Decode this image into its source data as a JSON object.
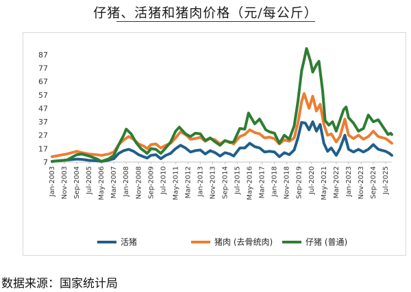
{
  "title": "仔猪、活猪和猪肉价格（元/每公斤）",
  "source": "数据来源：国家统计局",
  "chart_data": {
    "type": "line",
    "title": "仔猪、活猪和猪肉价格（元/每公斤）",
    "xlabel": "",
    "ylabel": "",
    "ylim": [
      7,
      92
    ],
    "yticks": [
      7,
      17,
      27,
      37,
      47,
      57,
      67,
      77,
      87
    ],
    "x_start": "Jan-2003",
    "x_end": "Dec-2025",
    "xtick_labels": [
      "Jan-2003",
      "Nov-2003",
      "Sep-2004",
      "Jul-2005",
      "May-2006",
      "Mar-2007",
      "Jan-2008",
      "Nov-2008",
      "Sep-2009",
      "Jul-2010",
      "May-2011",
      "Mar-2012",
      "Jan-2013",
      "Nov-2013",
      "Sep-2014",
      "Jul-2015",
      "May-2016",
      "Mar-2017",
      "Jan-2018",
      "Nov-2018",
      "Sep-2019",
      "Jul-2020",
      "May-2021",
      "Mar-2022",
      "Jan-2023",
      "Nov-2023",
      "Sep-2024",
      "Jul-2025"
    ],
    "grid": false,
    "legend_position": "bottom",
    "series": [
      {
        "name": "活猪",
        "color": "#1f5f8b",
        "points": [
          [
            "Jan-2003",
            7.5
          ],
          [
            "Jan-2004",
            8.5
          ],
          [
            "Sep-2004",
            9.2
          ],
          [
            "Jan-2005",
            9.0
          ],
          [
            "Jul-2005",
            8.3
          ],
          [
            "Jan-2006",
            8.0
          ],
          [
            "May-2006",
            7.4
          ],
          [
            "Nov-2006",
            8.5
          ],
          [
            "Mar-2007",
            9.5
          ],
          [
            "Jul-2007",
            13.5
          ],
          [
            "Nov-2007",
            15.5
          ],
          [
            "Mar-2008",
            16.5
          ],
          [
            "Jul-2008",
            15.0
          ],
          [
            "Nov-2008",
            12.5
          ],
          [
            "Mar-2009",
            11.0
          ],
          [
            "Jun-2009",
            10.0
          ],
          [
            "Sep-2009",
            12.0
          ],
          [
            "Jan-2010",
            12.5
          ],
          [
            "May-2010",
            9.5
          ],
          [
            "Sep-2010",
            12.0
          ],
          [
            "Jan-2011",
            13.5
          ],
          [
            "May-2011",
            17.0
          ],
          [
            "Sep-2011",
            19.5
          ],
          [
            "Jan-2012",
            17.5
          ],
          [
            "May-2012",
            14.5
          ],
          [
            "Sep-2012",
            15.5
          ],
          [
            "Jan-2013",
            16.0
          ],
          [
            "May-2013",
            13.0
          ],
          [
            "Sep-2013",
            15.5
          ],
          [
            "Jan-2014",
            14.0
          ],
          [
            "May-2014",
            11.5
          ],
          [
            "Sep-2014",
            14.0
          ],
          [
            "Jan-2015",
            13.0
          ],
          [
            "Apr-2015",
            11.5
          ],
          [
            "Sep-2015",
            17.5
          ],
          [
            "Jan-2016",
            17.5
          ],
          [
            "May-2016",
            21.0
          ],
          [
            "Sep-2016",
            18.5
          ],
          [
            "Jan-2017",
            17.5
          ],
          [
            "May-2017",
            14.5
          ],
          [
            "Sep-2017",
            15.0
          ],
          [
            "Jan-2018",
            14.5
          ],
          [
            "May-2018",
            11.0
          ],
          [
            "Sep-2018",
            14.0
          ],
          [
            "Jan-2019",
            12.5
          ],
          [
            "May-2019",
            16.0
          ],
          [
            "Aug-2019",
            25.0
          ],
          [
            "Nov-2019",
            36.5
          ],
          [
            "Feb-2020",
            36.0
          ],
          [
            "May-2020",
            31.0
          ],
          [
            "Aug-2020",
            37.0
          ],
          [
            "Nov-2020",
            30.0
          ],
          [
            "Feb-2021",
            35.0
          ],
          [
            "May-2021",
            21.0
          ],
          [
            "Aug-2021",
            15.0
          ],
          [
            "Nov-2021",
            17.5
          ],
          [
            "Mar-2022",
            12.0
          ],
          [
            "Jun-2022",
            17.0
          ],
          [
            "Oct-2022",
            27.0
          ],
          [
            "Jan-2023",
            16.5
          ],
          [
            "May-2023",
            14.5
          ],
          [
            "Sep-2023",
            16.5
          ],
          [
            "Jan-2024",
            14.5
          ],
          [
            "May-2024",
            16.5
          ],
          [
            "Sep-2024",
            20.0
          ],
          [
            "Jan-2025",
            16.5
          ],
          [
            "Jul-2025",
            15.0
          ],
          [
            "Oct-2025",
            13.5
          ],
          [
            "Dec-2025",
            12.0
          ]
        ]
      },
      {
        "name": "猪肉 (去骨统肉)",
        "color": "#ed7d31",
        "points": [
          [
            "Jan-2003",
            11.0
          ],
          [
            "Jan-2004",
            13.0
          ],
          [
            "Sep-2004",
            15.0
          ],
          [
            "Jan-2005",
            14.0
          ],
          [
            "Jul-2005",
            13.0
          ],
          [
            "Jan-2006",
            12.5
          ],
          [
            "May-2006",
            12.0
          ],
          [
            "Nov-2006",
            13.0
          ],
          [
            "Mar-2007",
            14.5
          ],
          [
            "Jul-2007",
            20.0
          ],
          [
            "Nov-2007",
            23.5
          ],
          [
            "Mar-2008",
            26.0
          ],
          [
            "Jul-2008",
            24.0
          ],
          [
            "Nov-2008",
            20.5
          ],
          [
            "Mar-2009",
            19.0
          ],
          [
            "Jun-2009",
            17.0
          ],
          [
            "Sep-2009",
            20.0
          ],
          [
            "Jan-2010",
            20.5
          ],
          [
            "May-2010",
            17.5
          ],
          [
            "Sep-2010",
            19.5
          ],
          [
            "Jan-2011",
            21.0
          ],
          [
            "May-2011",
            25.0
          ],
          [
            "Sep-2011",
            29.5
          ],
          [
            "Jan-2012",
            27.5
          ],
          [
            "May-2012",
            24.0
          ],
          [
            "Sep-2012",
            24.5
          ],
          [
            "Jan-2013",
            25.5
          ],
          [
            "May-2013",
            22.5
          ],
          [
            "Sep-2013",
            24.5
          ],
          [
            "Jan-2014",
            23.5
          ],
          [
            "May-2014",
            20.5
          ],
          [
            "Sep-2014",
            23.0
          ],
          [
            "Jan-2015",
            22.0
          ],
          [
            "Apr-2015",
            20.5
          ],
          [
            "Sep-2015",
            26.0
          ],
          [
            "Jan-2016",
            27.5
          ],
          [
            "May-2016",
            31.0
          ],
          [
            "Sep-2016",
            29.0
          ],
          [
            "Jan-2017",
            28.0
          ],
          [
            "May-2017",
            25.0
          ],
          [
            "Sep-2017",
            25.5
          ],
          [
            "Jan-2018",
            24.5
          ],
          [
            "May-2018",
            20.5
          ],
          [
            "Sep-2018",
            23.5
          ],
          [
            "Jan-2019",
            22.5
          ],
          [
            "May-2019",
            25.0
          ],
          [
            "Aug-2019",
            36.0
          ],
          [
            "Nov-2019",
            52.0
          ],
          [
            "Jan-2020",
            58.0
          ],
          [
            "May-2020",
            47.0
          ],
          [
            "Aug-2020",
            56.0
          ],
          [
            "Nov-2020",
            45.0
          ],
          [
            "Feb-2021",
            50.0
          ],
          [
            "May-2021",
            35.0
          ],
          [
            "Aug-2021",
            27.0
          ],
          [
            "Nov-2021",
            28.0
          ],
          [
            "Mar-2022",
            22.0
          ],
          [
            "Jun-2022",
            26.0
          ],
          [
            "Oct-2022",
            39.0
          ],
          [
            "Jan-2023",
            27.0
          ],
          [
            "May-2023",
            24.5
          ],
          [
            "Sep-2023",
            27.0
          ],
          [
            "Jan-2024",
            24.0
          ],
          [
            "May-2024",
            26.0
          ],
          [
            "Sep-2024",
            30.0
          ],
          [
            "Jan-2025",
            26.0
          ],
          [
            "Jul-2025",
            24.5
          ],
          [
            "Oct-2025",
            22.5
          ],
          [
            "Dec-2025",
            21.0
          ]
        ]
      },
      {
        "name": "仔猪 (普通)",
        "color": "#2e7d32",
        "points": [
          [
            "Jan-2003",
            7.5
          ],
          [
            "Jan-2004",
            8.5
          ],
          [
            "Sep-2004",
            12.5
          ],
          [
            "Jan-2005",
            13.0
          ],
          [
            "Jul-2005",
            11.5
          ],
          [
            "Jan-2006",
            9.5
          ],
          [
            "May-2006",
            7.5
          ],
          [
            "Nov-2006",
            9.5
          ],
          [
            "Mar-2007",
            12.0
          ],
          [
            "Jul-2007",
            20.0
          ],
          [
            "Nov-2007",
            27.0
          ],
          [
            "Jan-2008",
            31.5
          ],
          [
            "May-2008",
            28.0
          ],
          [
            "Sep-2008",
            21.5
          ],
          [
            "Jan-2009",
            17.0
          ],
          [
            "Jun-2009",
            13.5
          ],
          [
            "Sep-2009",
            17.0
          ],
          [
            "Jan-2010",
            16.5
          ],
          [
            "May-2010",
            13.5
          ],
          [
            "Sep-2010",
            17.5
          ],
          [
            "Jan-2011",
            22.0
          ],
          [
            "May-2011",
            30.0
          ],
          [
            "Aug-2011",
            33.0
          ],
          [
            "Jan-2012",
            28.0
          ],
          [
            "May-2012",
            26.0
          ],
          [
            "Sep-2012",
            28.5
          ],
          [
            "Jan-2013",
            28.0
          ],
          [
            "May-2013",
            23.0
          ],
          [
            "Sep-2013",
            25.0
          ],
          [
            "Jan-2014",
            22.0
          ],
          [
            "May-2014",
            19.5
          ],
          [
            "Sep-2014",
            23.0
          ],
          [
            "Jan-2015",
            21.5
          ],
          [
            "Apr-2015",
            22.0
          ],
          [
            "Sep-2015",
            32.0
          ],
          [
            "Jan-2016",
            31.5
          ],
          [
            "Apr-2016",
            43.5
          ],
          [
            "Sep-2016",
            35.5
          ],
          [
            "Jan-2017",
            39.0
          ],
          [
            "Jun-2017",
            31.0
          ],
          [
            "Sep-2017",
            29.5
          ],
          [
            "Jan-2018",
            28.5
          ],
          [
            "May-2018",
            21.0
          ],
          [
            "Sep-2018",
            27.0
          ],
          [
            "Jan-2019",
            24.0
          ],
          [
            "May-2019",
            34.0
          ],
          [
            "Aug-2019",
            52.0
          ],
          [
            "Nov-2019",
            75.0
          ],
          [
            "Jan-2020",
            83.0
          ],
          [
            "Mar-2020",
            91.5
          ],
          [
            "Jun-2020",
            82.5
          ],
          [
            "Aug-2020",
            74.0
          ],
          [
            "Nov-2020",
            79.5
          ],
          [
            "Jan-2021",
            82.0
          ],
          [
            "Apr-2021",
            60.0
          ],
          [
            "Jun-2021",
            38.0
          ],
          [
            "Sep-2021",
            34.5
          ],
          [
            "Dec-2021",
            37.0
          ],
          [
            "Mar-2022",
            30.0
          ],
          [
            "Jun-2022",
            38.0
          ],
          [
            "Sep-2022",
            46.0
          ],
          [
            "Nov-2022",
            48.0
          ],
          [
            "Jan-2023",
            40.0
          ],
          [
            "May-2023",
            36.0
          ],
          [
            "Sep-2023",
            30.0
          ],
          [
            "Jan-2024",
            32.0
          ],
          [
            "May-2024",
            42.0
          ],
          [
            "Sep-2024",
            37.0
          ],
          [
            "Jan-2025",
            38.5
          ],
          [
            "May-2025",
            33.0
          ],
          [
            "Sep-2025",
            27.5
          ],
          [
            "Nov-2025",
            28.5
          ],
          [
            "Dec-2025",
            27.5
          ]
        ]
      }
    ]
  }
}
